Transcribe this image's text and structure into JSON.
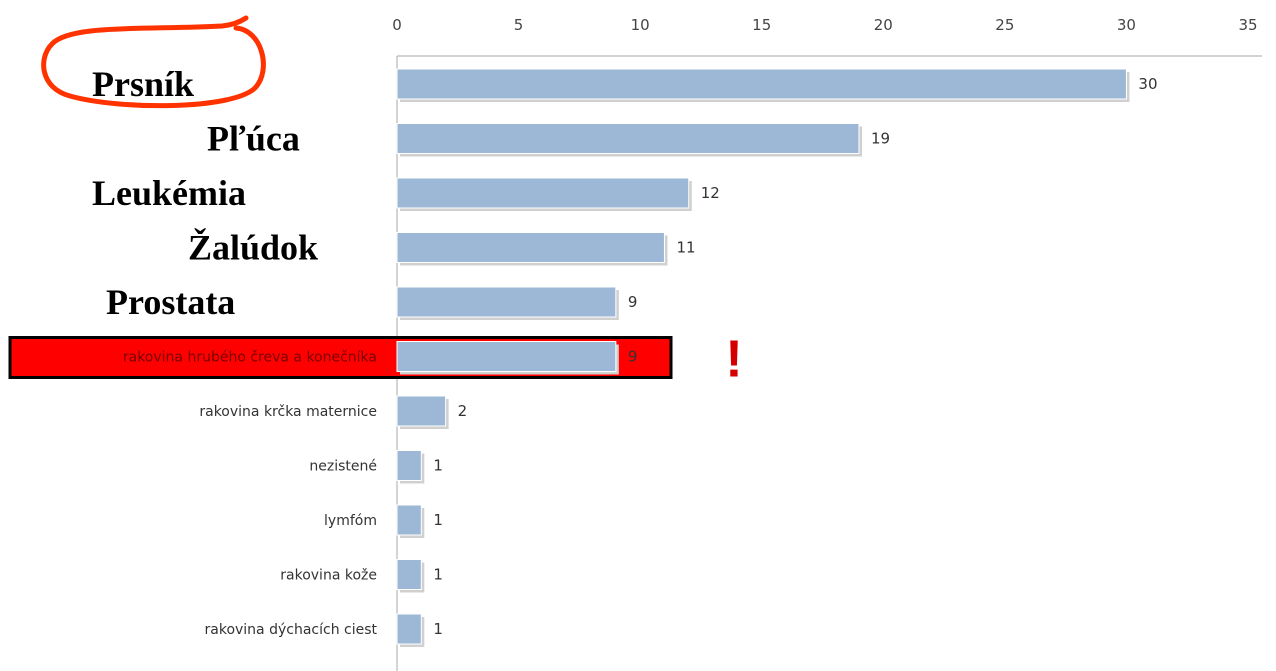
{
  "chart_data": {
    "type": "bar",
    "orientation": "horizontal",
    "axis_position": "top",
    "xlim": [
      0,
      35
    ],
    "ticks": [
      0,
      5,
      10,
      15,
      20,
      25,
      30,
      35
    ],
    "bars": [
      {
        "label": "Prsník",
        "value": 30,
        "label_style": "large"
      },
      {
        "label": "Pľúca",
        "value": 19,
        "label_style": "large"
      },
      {
        "label": "Leukémia",
        "value": 12,
        "label_style": "large"
      },
      {
        "label": "Žalúdok",
        "value": 11,
        "label_style": "large"
      },
      {
        "label": "Prostata",
        "value": 9,
        "label_style": "large"
      },
      {
        "label": "rakovina hrubého čreva a konečníka",
        "value": 9,
        "label_style": "highlight"
      },
      {
        "label": "rakovina krčka maternice",
        "value": 2,
        "label_style": "small"
      },
      {
        "label": "nezistené",
        "value": 1,
        "label_style": "small"
      },
      {
        "label": "lymfóm",
        "value": 1,
        "label_style": "small"
      },
      {
        "label": "rakovina kože",
        "value": 1,
        "label_style": "small"
      },
      {
        "label": "rakovina dýchacích ciest",
        "value": 1,
        "label_style": "small"
      }
    ],
    "annotation": "!",
    "circled_label": "Prsník",
    "grid": false
  },
  "colors": {
    "bar": "#9db8d6",
    "bar_shadow": "#d0d0d0",
    "highlight_box": "#ff0000",
    "annotation": "#d40000",
    "circle": "#ff3300",
    "axis": "#b8b8b8"
  }
}
